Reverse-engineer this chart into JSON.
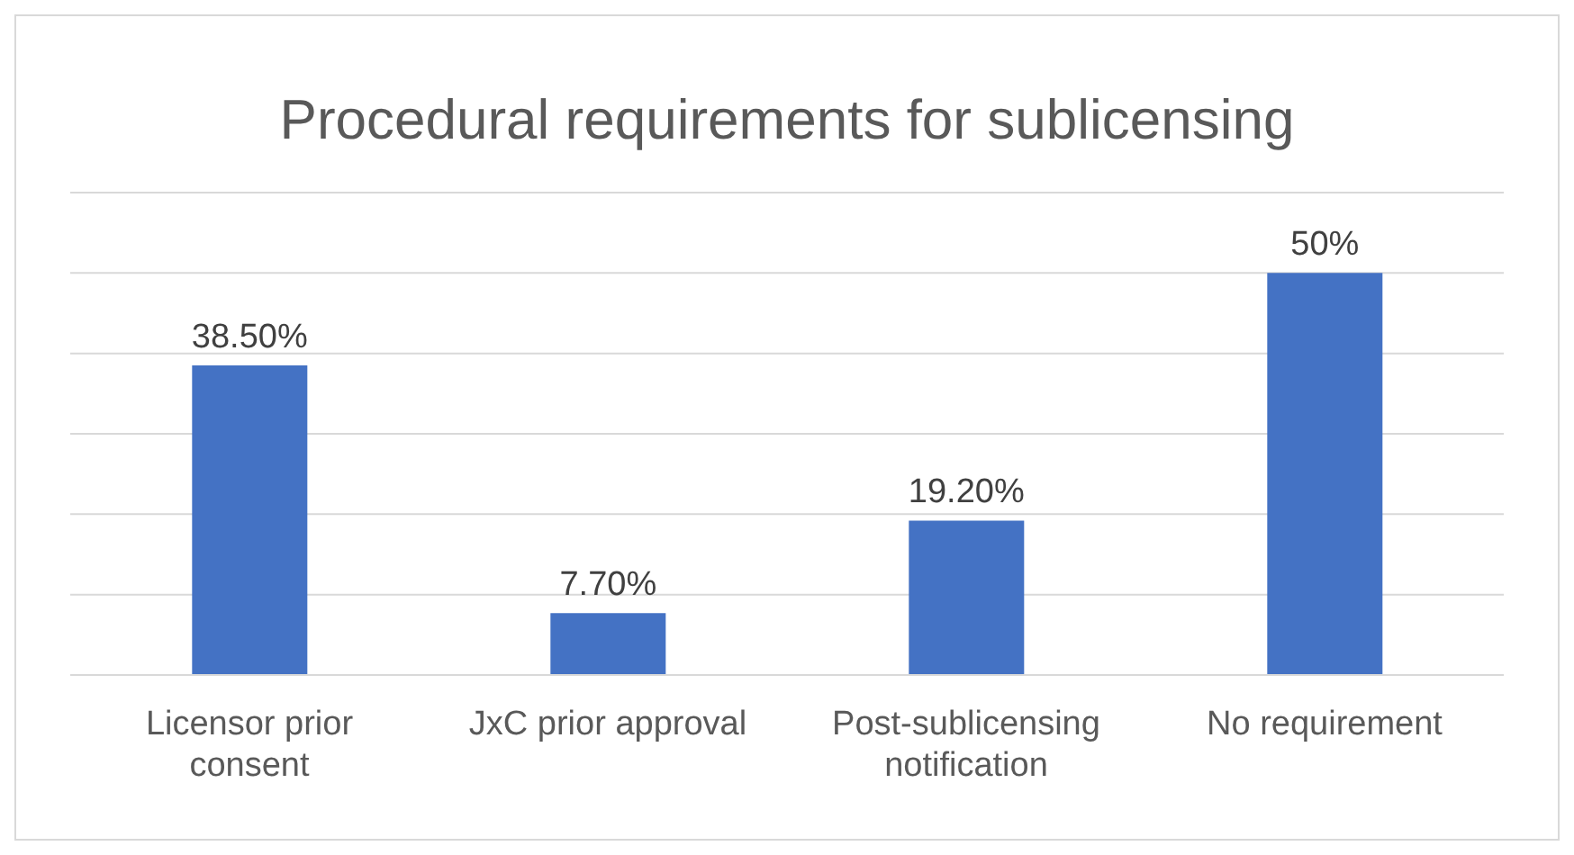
{
  "chart_data": {
    "type": "bar",
    "title": "Procedural requirements for sublicensing",
    "categories": [
      "Licensor prior consent",
      "JxC prior approval",
      "Post-sublicensing notification",
      "No requirement"
    ],
    "values": [
      38.5,
      7.7,
      19.2,
      50
    ],
    "value_labels": [
      "38.50%",
      "7.70%",
      "19.20%",
      "50%"
    ],
    "color": "#4472c4",
    "ylim": [
      0,
      60
    ],
    "yticks": [
      {
        "value": 0,
        "label": null
      },
      {
        "value": 10,
        "label": null
      },
      {
        "value": 20,
        "label": null
      },
      {
        "value": 30,
        "label": null
      },
      {
        "value": 40,
        "label": null
      },
      {
        "value": 50,
        "label": null
      },
      {
        "value": 60,
        "label": null
      }
    ],
    "grid": "y",
    "tick_labels": "x"
  }
}
